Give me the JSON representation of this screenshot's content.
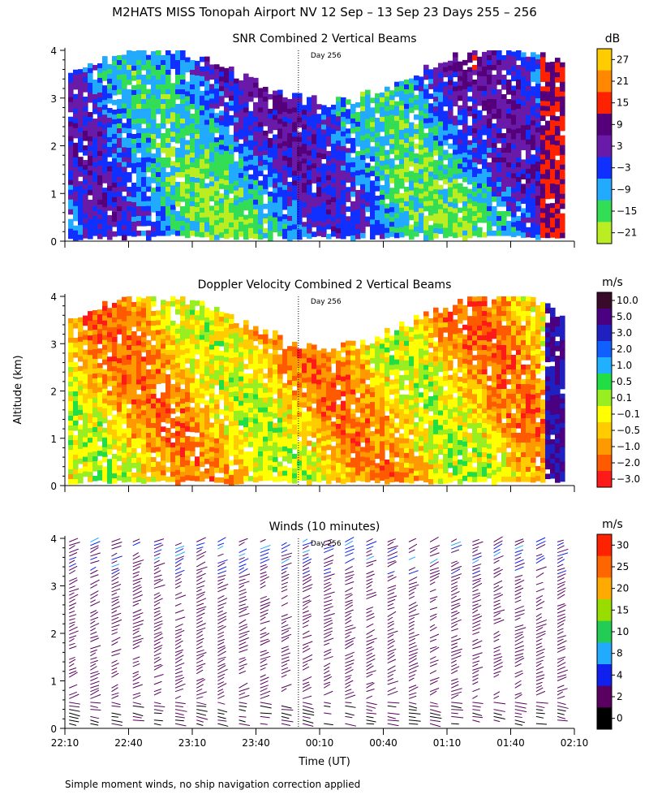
{
  "figure": {
    "title": "M2HATS MISS Tonopah Airport NV  12 Sep – 13 Sep 23 Days 255 – 256",
    "y_axis_label": "Altitude (km)",
    "x_axis_label": "Time (UT)",
    "footnote": "Simple moment winds, no ship navigation correction applied",
    "day_marker_label": "Day 256"
  },
  "chart_data": [
    {
      "type": "heatmap",
      "title": "SNR Combined 2 Vertical Beams",
      "colorbar_unit": "dB",
      "colorbar_ticks": [
        "27",
        "21",
        "15",
        "9",
        "3",
        "−3",
        "−9",
        "−15",
        "−21"
      ],
      "colorbar_colors": [
        "#ffcc00",
        "#ff8800",
        "#ff2200",
        "#55007a",
        "#6a1aa8",
        "#1030ff",
        "#22aaff",
        "#33dd55",
        "#bbee22"
      ],
      "y_ticks": [
        "0",
        "1",
        "2",
        "3",
        "4"
      ],
      "ylim": [
        0,
        4
      ],
      "x_ticks": [
        "22:10",
        "22:40",
        "23:10",
        "23:40",
        "00:10",
        "00:40",
        "01:10",
        "01:40",
        "02:10"
      ],
      "day_boundary": "00:00"
    },
    {
      "type": "heatmap",
      "title": "Doppler Velocity Combined 2 Vertical Beams",
      "colorbar_unit": "m/s",
      "colorbar_ticks": [
        "10.0",
        "5.0",
        "3.0",
        "2.0",
        "1.0",
        "0.5",
        "0.1",
        "−0.1",
        "−0.5",
        "−1.0",
        "−2.0",
        "−3.0"
      ],
      "colorbar_colors": [
        "#3a0a2a",
        "#4b0082",
        "#2020c0",
        "#1060ff",
        "#20b0ff",
        "#22dd44",
        "#99ee22",
        "#ffff00",
        "#ffcc00",
        "#ff9900",
        "#ff5a00",
        "#ff1a1a"
      ],
      "y_ticks": [
        "0",
        "1",
        "2",
        "3",
        "4"
      ],
      "ylim": [
        0,
        4
      ],
      "x_ticks": [
        "22:10",
        "22:40",
        "23:10",
        "23:40",
        "00:10",
        "00:40",
        "01:10",
        "01:40",
        "02:10"
      ],
      "day_boundary": "00:00"
    },
    {
      "type": "scatter",
      "title": "Winds (10 minutes)",
      "colorbar_unit": "m/s",
      "colorbar_ticks": [
        "30",
        "25",
        "20",
        "15",
        "10",
        "8",
        "4",
        "2",
        "0"
      ],
      "colorbar_colors": [
        "#ff2200",
        "#ff6600",
        "#ffaa00",
        "#99dd00",
        "#22cc55",
        "#22aaff",
        "#1020ee",
        "#5a0060",
        "#000000"
      ],
      "y_ticks": [
        "0",
        "1",
        "2",
        "3",
        "4"
      ],
      "ylim": [
        0,
        4
      ],
      "x_ticks": [
        "22:10",
        "22:40",
        "23:10",
        "23:40",
        "00:10",
        "00:40",
        "01:10",
        "01:40",
        "02:10"
      ],
      "day_boundary": "00:00",
      "profile_interval_minutes": 10
    }
  ]
}
